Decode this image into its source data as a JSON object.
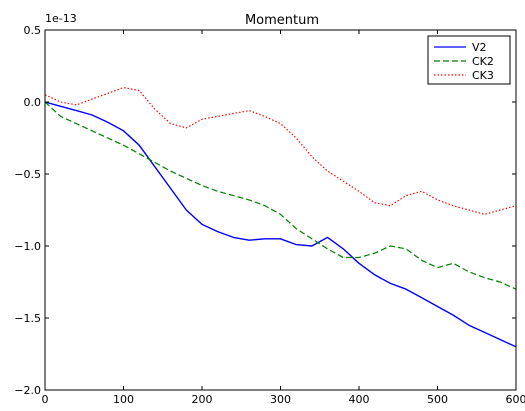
{
  "chart_data": {
    "type": "line",
    "title": "Momentum",
    "offset_text": "1e-13",
    "xlabel": "",
    "ylabel": "",
    "xlim": [
      0,
      600
    ],
    "ylim": [
      -2.0,
      0.5
    ],
    "x_ticks": [
      0,
      100,
      200,
      300,
      400,
      500,
      600
    ],
    "x_tick_labels": [
      "0",
      "100",
      "200",
      "300",
      "400",
      "500",
      "600"
    ],
    "y_ticks": [
      0.5,
      0.0,
      -0.5,
      -1.0,
      -1.5,
      -2.0
    ],
    "y_tick_labels": [
      "0.5",
      "0.0",
      "−0.5",
      "−1.0",
      "−1.5",
      "−2.0"
    ],
    "grid": false,
    "legend_position": "top-right",
    "series": [
      {
        "name": "V2",
        "color": "#0000ff",
        "style": "solid",
        "x": [
          0,
          20,
          40,
          60,
          80,
          100,
          120,
          140,
          160,
          180,
          200,
          220,
          240,
          260,
          280,
          300,
          320,
          340,
          360,
          380,
          400,
          420,
          440,
          460,
          480,
          500,
          520,
          540,
          560,
          580,
          600
        ],
        "y": [
          0.0,
          -0.03,
          -0.06,
          -0.09,
          -0.14,
          -0.2,
          -0.3,
          -0.45,
          -0.6,
          -0.75,
          -0.85,
          -0.9,
          -0.94,
          -0.96,
          -0.95,
          -0.95,
          -0.99,
          -1.0,
          -0.94,
          -1.02,
          -1.12,
          -1.2,
          -1.26,
          -1.3,
          -1.36,
          -1.42,
          -1.48,
          -1.55,
          -1.6,
          -1.65,
          -1.7
        ]
      },
      {
        "name": "CK2",
        "color": "#008000",
        "style": "dashed",
        "x": [
          0,
          20,
          40,
          60,
          80,
          100,
          120,
          140,
          160,
          180,
          200,
          220,
          240,
          260,
          280,
          300,
          320,
          340,
          360,
          380,
          400,
          420,
          440,
          460,
          480,
          500,
          520,
          540,
          560,
          580,
          600
        ],
        "y": [
          0.0,
          -0.1,
          -0.15,
          -0.2,
          -0.25,
          -0.3,
          -0.36,
          -0.42,
          -0.48,
          -0.53,
          -0.58,
          -0.62,
          -0.65,
          -0.68,
          -0.72,
          -0.78,
          -0.88,
          -0.95,
          -1.02,
          -1.08,
          -1.08,
          -1.05,
          -1.0,
          -1.02,
          -1.1,
          -1.15,
          -1.12,
          -1.18,
          -1.22,
          -1.25,
          -1.3
        ]
      },
      {
        "name": "CK3",
        "color": "#ff0000",
        "style": "dotted",
        "x": [
          0,
          20,
          40,
          60,
          80,
          100,
          120,
          140,
          160,
          180,
          200,
          220,
          240,
          260,
          280,
          300,
          320,
          340,
          360,
          380,
          400,
          420,
          440,
          460,
          480,
          500,
          520,
          540,
          560,
          580,
          600
        ],
        "y": [
          0.05,
          0.0,
          -0.02,
          0.02,
          0.06,
          0.1,
          0.08,
          -0.05,
          -0.15,
          -0.18,
          -0.12,
          -0.1,
          -0.08,
          -0.06,
          -0.1,
          -0.15,
          -0.25,
          -0.38,
          -0.48,
          -0.55,
          -0.62,
          -0.7,
          -0.72,
          -0.65,
          -0.62,
          -0.68,
          -0.72,
          -0.75,
          -0.78,
          -0.75,
          -0.72
        ]
      }
    ]
  }
}
